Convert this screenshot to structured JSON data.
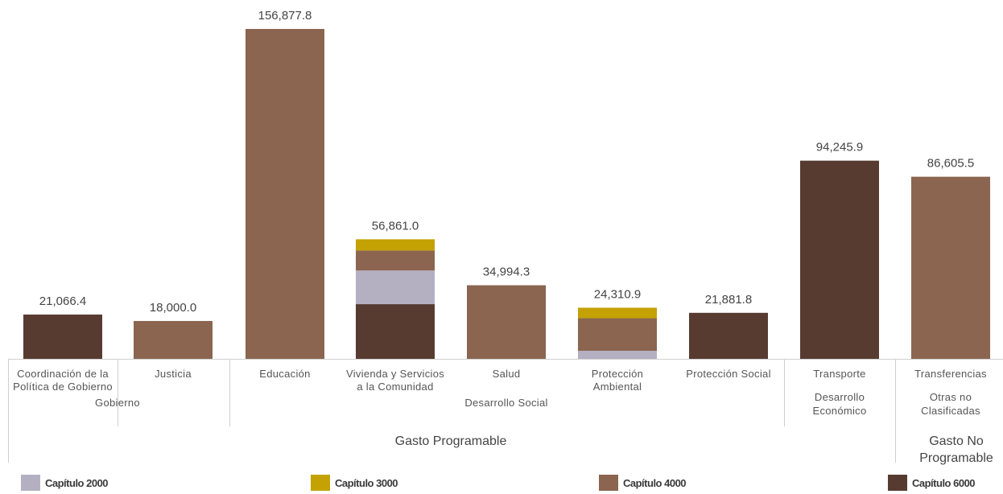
{
  "chart_data": {
    "type": "bar",
    "stacked": true,
    "ylim": [
      0,
      160000
    ],
    "series": [
      {
        "name": "Capítulo 2000",
        "color": "#b4b0c2"
      },
      {
        "name": "Capítulo 3000",
        "color": "#c4a204"
      },
      {
        "name": "Capítulo 4000",
        "color": "#8b6550"
      },
      {
        "name": "Capítulo 6000",
        "color": "#573b31"
      }
    ],
    "bars": [
      {
        "label_lines": [
          "Coordinación de la",
          "Política de Gobierno"
        ],
        "total_label": "21,066.4",
        "segments": {
          "Capítulo 6000": 21066.4
        }
      },
      {
        "label_lines": [
          "Justicia"
        ],
        "total_label": "18,000.0",
        "segments": {
          "Capítulo 4000": 18000.0
        }
      },
      {
        "label_lines": [
          "Educación"
        ],
        "total_label": "156,877.8",
        "segments": {
          "Capítulo 4000": 156877.8
        }
      },
      {
        "label_lines": [
          "Vivienda y Servicios",
          "a la Comunidad"
        ],
        "total_label": "56,861.0",
        "segments": {
          "Capítulo 6000": 26000,
          "Capítulo 2000": 16000,
          "Capítulo 4000": 9500,
          "Capítulo 3000": 5361.0
        }
      },
      {
        "label_lines": [
          "Salud"
        ],
        "total_label": "34,994.3",
        "segments": {
          "Capítulo 4000": 34994.3
        }
      },
      {
        "label_lines": [
          "Protección",
          "Ambiental"
        ],
        "total_label": "24,310.9",
        "segments": {
          "Capítulo 4000": 15500,
          "Capítulo 3000": 5000,
          "Capítulo 2000": 3810.9
        }
      },
      {
        "label_lines": [
          "Protección Social"
        ],
        "total_label": "21,881.8",
        "segments": {
          "Capítulo 6000": 21881.8
        }
      },
      {
        "label_lines": [
          "Transporte"
        ],
        "total_label": "94,245.9",
        "segments": {
          "Capítulo 6000": 94245.9
        }
      },
      {
        "label_lines": [
          "Transferencias"
        ],
        "total_label": "86,605.5",
        "segments": {
          "Capítulo 4000": 86605.5
        }
      }
    ],
    "groups": [
      {
        "label_lines": [
          "Gobierno"
        ],
        "bar_indices": [
          0,
          1
        ]
      },
      {
        "label_lines": [
          "Desarrollo Social"
        ],
        "bar_indices": [
          2,
          3,
          4,
          5,
          6
        ]
      },
      {
        "label_lines": [
          "Desarrollo",
          "Económico"
        ],
        "bar_indices": [
          7
        ]
      },
      {
        "label_lines": [
          "Otras no",
          "Clasificadas"
        ],
        "bar_indices": [
          8
        ]
      }
    ],
    "top_groups": [
      {
        "label_lines": [
          "Gasto Programable"
        ],
        "bar_indices": [
          0,
          1,
          2,
          3,
          4,
          5,
          6,
          7
        ]
      },
      {
        "label_lines": [
          "Gasto No",
          "Programable"
        ],
        "bar_indices": [
          8
        ]
      }
    ]
  },
  "legend": [
    {
      "label": "Capítulo 2000",
      "color": "#b4b0c2"
    },
    {
      "label": "Capítulo 3000",
      "color": "#c4a204"
    },
    {
      "label": "Capítulo 4000",
      "color": "#8b6550"
    },
    {
      "label": "Capítulo 6000",
      "color": "#573b31"
    }
  ]
}
